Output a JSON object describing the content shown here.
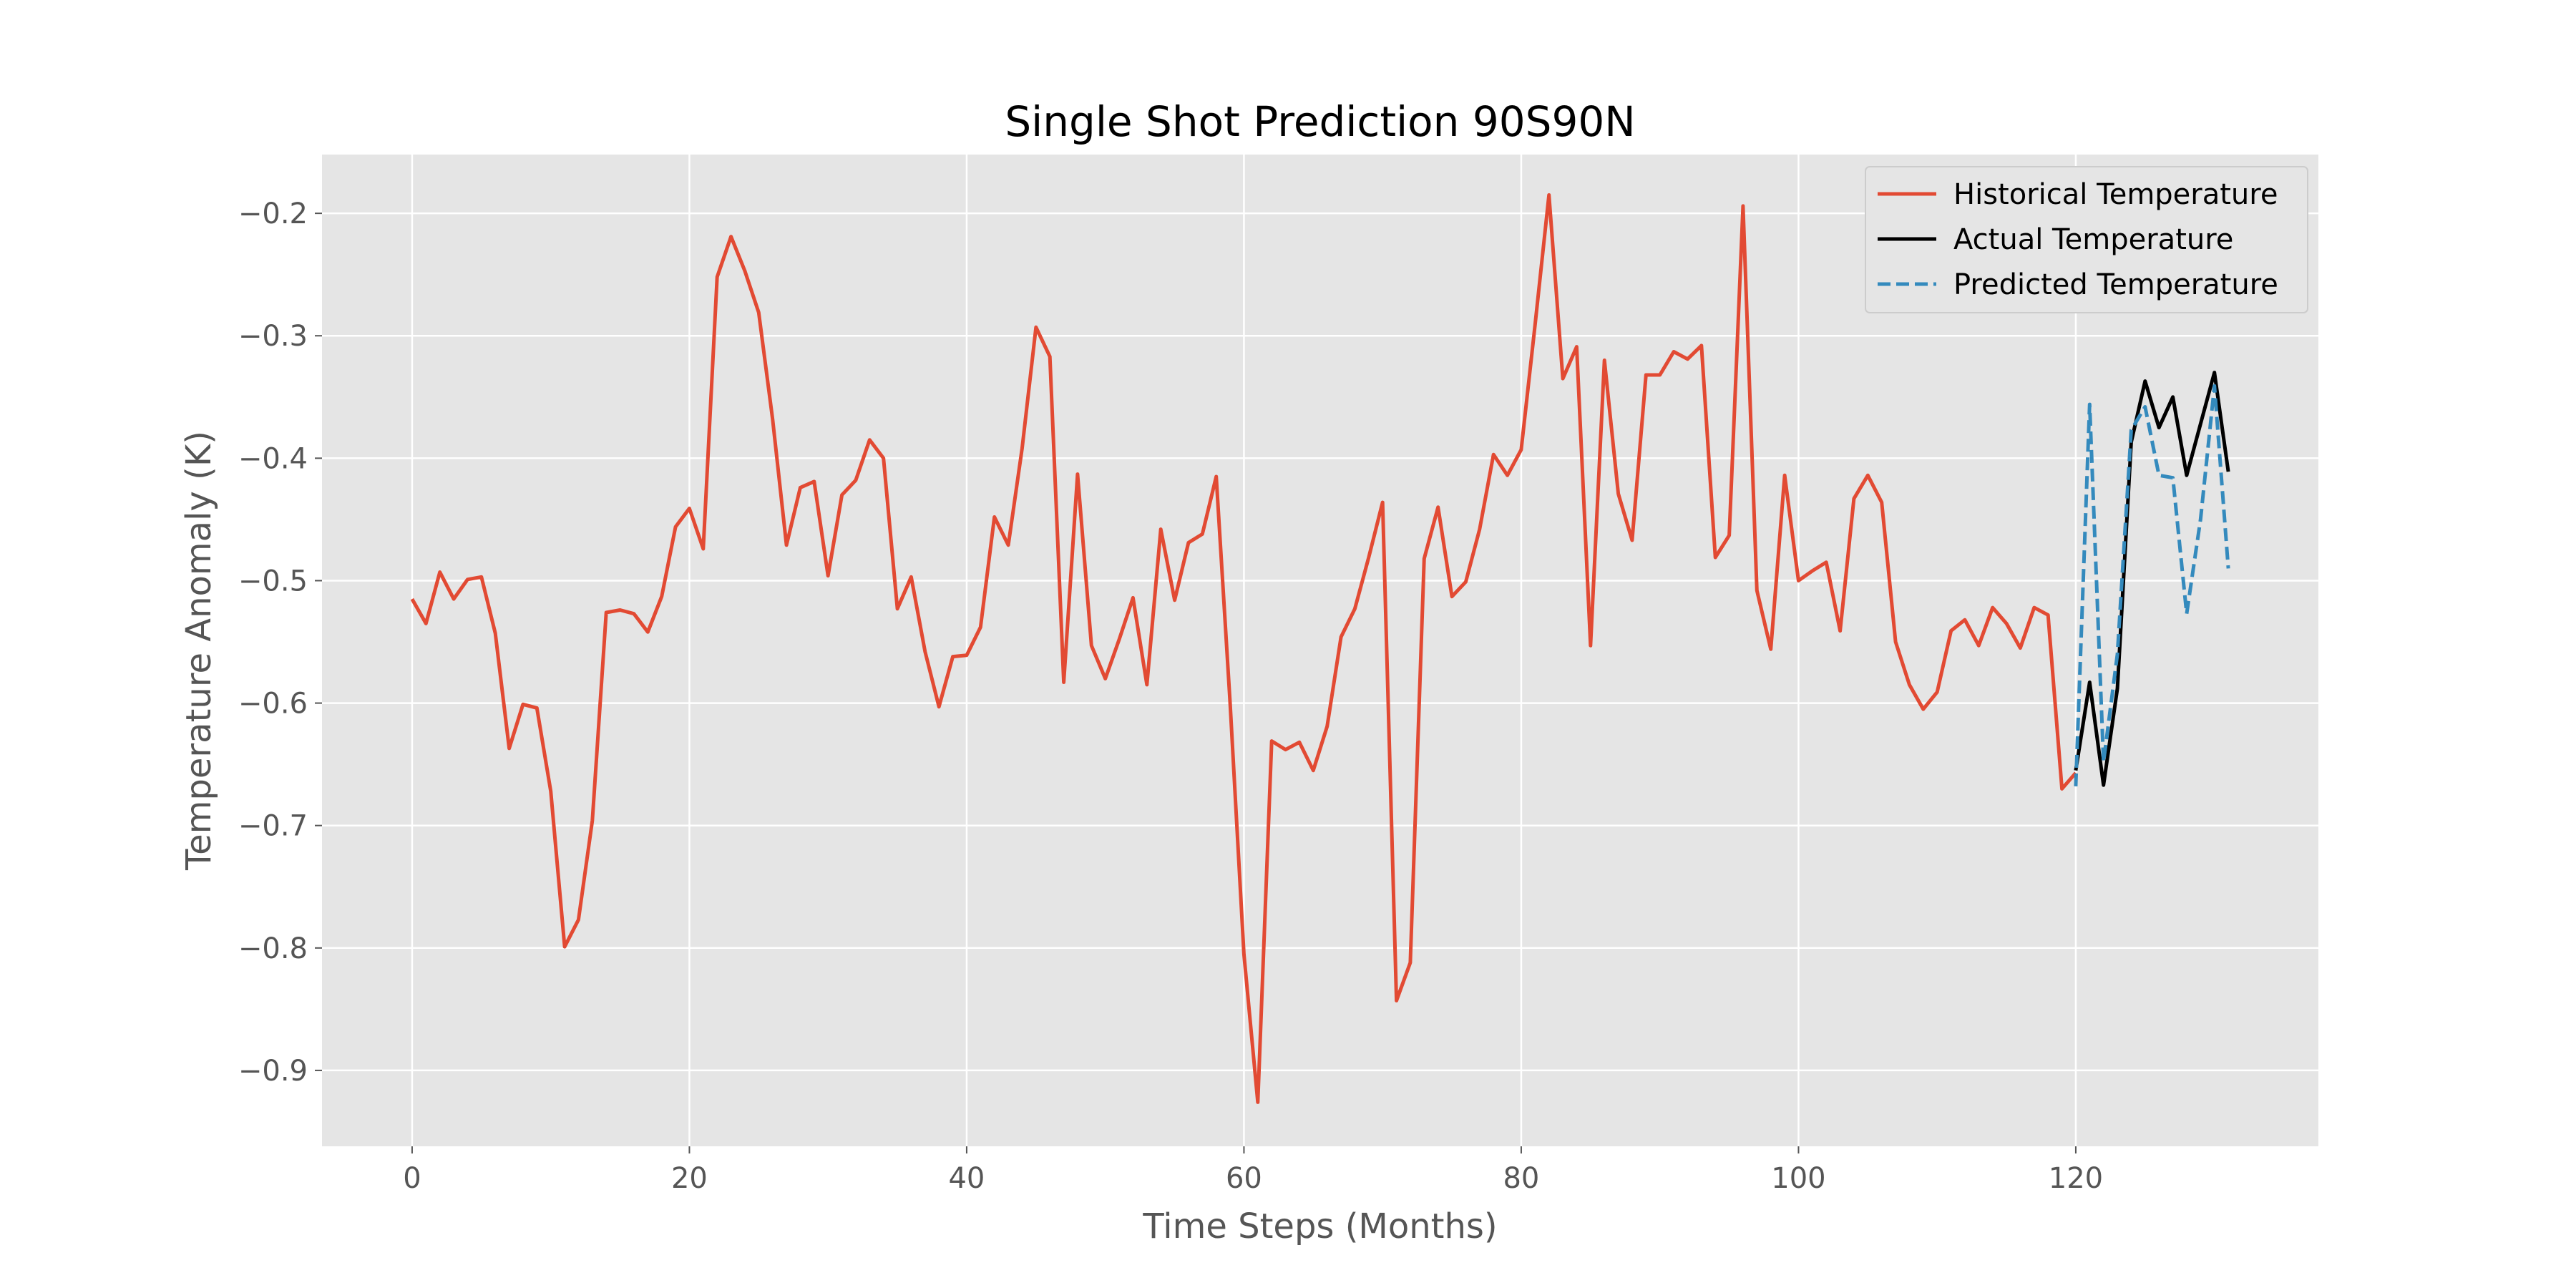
{
  "chart_data": {
    "type": "line",
    "title": "Single Shot Prediction 90S90N",
    "xlabel": "Time Steps (Months)",
    "ylabel": "Temperature Anomaly (K)",
    "xlim": [
      -6.5,
      137.5
    ],
    "ylim": [
      -0.962,
      -0.152
    ],
    "xticks": [
      0,
      20,
      40,
      60,
      80,
      100,
      120
    ],
    "yticks": [
      -0.9,
      -0.8,
      -0.7,
      -0.6,
      -0.5,
      -0.4,
      -0.3,
      -0.2
    ],
    "grid": true,
    "legend_position": "top-right",
    "series": [
      {
        "name": "Historical Temperature",
        "color": "#E24A33",
        "style": "solid",
        "x_start": 0,
        "values": [
          -0.515,
          -0.535,
          -0.493,
          -0.515,
          -0.499,
          -0.497,
          -0.543,
          -0.637,
          -0.601,
          -0.604,
          -0.672,
          -0.799,
          -0.777,
          -0.696,
          -0.526,
          -0.524,
          -0.527,
          -0.542,
          -0.513,
          -0.456,
          -0.441,
          -0.474,
          -0.252,
          -0.219,
          -0.247,
          -0.281,
          -0.368,
          -0.471,
          -0.424,
          -0.419,
          -0.496,
          -0.43,
          -0.418,
          -0.385,
          -0.4,
          -0.523,
          -0.497,
          -0.558,
          -0.603,
          -0.562,
          -0.561,
          -0.538,
          -0.448,
          -0.471,
          -0.392,
          -0.293,
          -0.317,
          -0.583,
          -0.413,
          -0.553,
          -0.58,
          -0.548,
          -0.514,
          -0.585,
          -0.458,
          -0.516,
          -0.469,
          -0.462,
          -0.415,
          -0.6,
          -0.805,
          -0.926,
          -0.631,
          -0.638,
          -0.632,
          -0.655,
          -0.619,
          -0.546,
          -0.523,
          -0.481,
          -0.436,
          -0.843,
          -0.812,
          -0.482,
          -0.44,
          -0.513,
          -0.501,
          -0.458,
          -0.397,
          -0.414,
          -0.393,
          -0.291,
          -0.185,
          -0.335,
          -0.309,
          -0.553,
          -0.32,
          -0.429,
          -0.467,
          -0.332,
          -0.332,
          -0.313,
          -0.319,
          -0.308,
          -0.481,
          -0.463,
          -0.194,
          -0.508,
          -0.556,
          -0.414,
          -0.5,
          -0.492,
          -0.485,
          -0.541,
          -0.433,
          -0.414,
          -0.436,
          -0.55,
          -0.585,
          -0.605,
          -0.591,
          -0.541,
          -0.532,
          -0.553,
          -0.522,
          -0.535,
          -0.555,
          -0.522,
          -0.528,
          -0.67,
          -0.657
        ]
      },
      {
        "name": "Actual Temperature",
        "color": "#000000",
        "style": "solid",
        "x_start": 120,
        "values": [
          -0.655,
          -0.583,
          -0.667,
          -0.588,
          -0.387,
          -0.337,
          -0.375,
          -0.35,
          -0.414,
          -0.372,
          -0.33,
          -0.411
        ]
      },
      {
        "name": "Predicted Temperature",
        "color": "#348ABD",
        "style": "dashed",
        "x_start": 120,
        "values": [
          -0.668,
          -0.356,
          -0.648,
          -0.56,
          -0.377,
          -0.358,
          -0.414,
          -0.416,
          -0.527,
          -0.45,
          -0.341,
          -0.49
        ]
      }
    ]
  }
}
